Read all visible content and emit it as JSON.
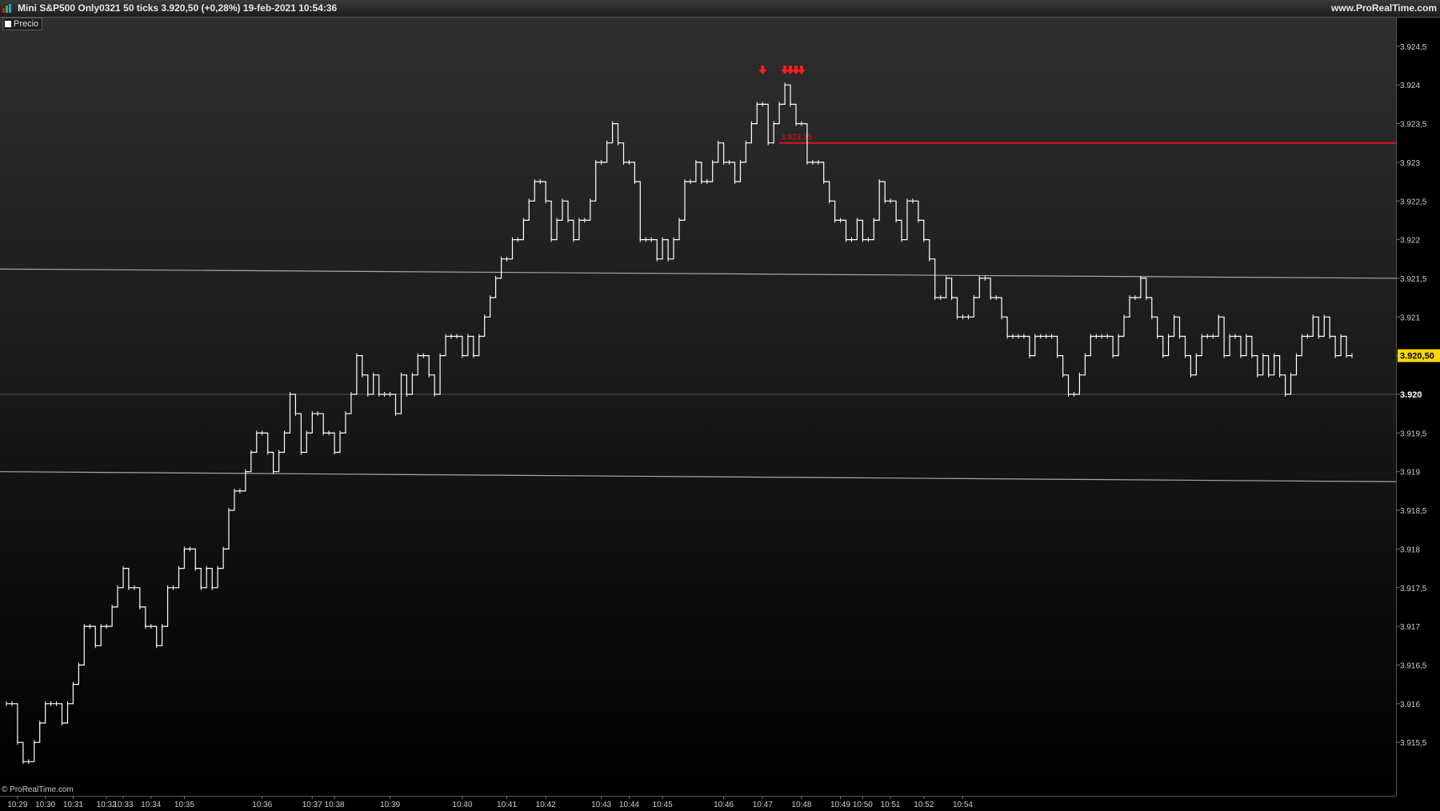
{
  "header": {
    "title": "Mini S&P500 Only0321 50 ticks 3.920,50 (+0,28%) 19-feb-2021 10:54:36",
    "website": "www.ProRealTime.com"
  },
  "legend": {
    "label": "Precio",
    "color": "#ffffff"
  },
  "footer": {
    "copyright": "© ProRealTime.com"
  },
  "colors": {
    "price_line": "#ffffff",
    "resistance": "#e0141e",
    "trendline": "#a8a8a8",
    "badge": "#ffd700"
  },
  "chart_data": {
    "type": "line",
    "style": "step",
    "instrument": "Mini S&P500",
    "interval": "50 ticks",
    "ylim": [
      3915.0,
      3924.75
    ],
    "ticks": [
      {
        "value": 3915.5,
        "label": "3.915,5"
      },
      {
        "value": 3916,
        "label": "3.916"
      },
      {
        "value": 3916.5,
        "label": "3.916,5"
      },
      {
        "value": 3917,
        "label": "3.917"
      },
      {
        "value": 3917.5,
        "label": "3.917,5"
      },
      {
        "value": 3918,
        "label": "3.918"
      },
      {
        "value": 3918.5,
        "label": "3.918,5"
      },
      {
        "value": 3919,
        "label": "3.919"
      },
      {
        "value": 3919.5,
        "label": "3.919,5"
      },
      {
        "value": 3920,
        "label": "3.920",
        "bold": true
      },
      {
        "value": 3920.5,
        "label": "3.920,50",
        "current": true
      },
      {
        "value": 3921,
        "label": "3.921"
      },
      {
        "value": 3921.5,
        "label": "3.921,5"
      },
      {
        "value": 3922,
        "label": "3.922"
      },
      {
        "value": 3922.5,
        "label": "3.922,5"
      },
      {
        "value": 3923,
        "label": "3.923"
      },
      {
        "value": 3923.5,
        "label": "3.923,5"
      },
      {
        "value": 3924,
        "label": "3.924"
      },
      {
        "value": 3924.5,
        "label": "3.924,5"
      }
    ],
    "x_labels": [
      "10:29",
      "10:30",
      "10:31",
      "10:32",
      "10:33",
      "10:34",
      "10:35",
      "10:36",
      "10:37",
      "10:38",
      "10:39",
      "10:40",
      "10:41",
      "10:42",
      "10:43",
      "10:44",
      "10:45",
      "10:46",
      "10:47",
      "10:48",
      "10:49",
      "10:50",
      "10:51",
      "10:52",
      "10:54"
    ],
    "x_label_bar_index": [
      2,
      7,
      12,
      18,
      21,
      26,
      32,
      46,
      55,
      59,
      69,
      82,
      90,
      97,
      107,
      112,
      118,
      129,
      136,
      143,
      150,
      154,
      159,
      165,
      172
    ],
    "series": [
      {
        "values": [
          3916,
          3916,
          3915.5,
          3915.25,
          3915.25,
          3915.5,
          3915.75,
          3916,
          3916,
          3916,
          3915.75,
          3916,
          3916.25,
          3916.5,
          3917,
          3917,
          3916.75,
          3917,
          3917,
          3917.25,
          3917.5,
          3917.75,
          3917.5,
          3917.5,
          3917.25,
          3917,
          3917,
          3916.75,
          3917,
          3917.5,
          3917.5,
          3917.75,
          3918,
          3918,
          3917.75,
          3917.5,
          3917.75,
          3917.5,
          3917.75,
          3918,
          3918.5,
          3918.75,
          3918.75,
          3919,
          3919.25,
          3919.5,
          3919.5,
          3919.25,
          3919,
          3919.25,
          3919.5,
          3920,
          3919.75,
          3919.25,
          3919.5,
          3919.75,
          3919.75,
          3919.5,
          3919.5,
          3919.25,
          3919.5,
          3919.75,
          3920,
          3920.5,
          3920.25,
          3920,
          3920.25,
          3920,
          3920,
          3920,
          3919.75,
          3920.25,
          3920,
          3920.25,
          3920.5,
          3920.5,
          3920.25,
          3920,
          3920.5,
          3920.75,
          3920.75,
          3920.75,
          3920.5,
          3920.75,
          3920.5,
          3920.75,
          3921,
          3921.25,
          3921.5,
          3921.75,
          3921.75,
          3922,
          3922,
          3922.25,
          3922.5,
          3922.75,
          3922.75,
          3922.5,
          3922,
          3922.25,
          3922.5,
          3922.25,
          3922,
          3922.25,
          3922.25,
          3922.5,
          3923,
          3923,
          3923.25,
          3923.5,
          3923.25,
          3923,
          3923,
          3922.75,
          3922,
          3922,
          3922,
          3921.75,
          3922,
          3921.75,
          3922,
          3922.25,
          3922.75,
          3922.75,
          3923,
          3922.75,
          3922.75,
          3923,
          3923.25,
          3923,
          3923,
          3922.75,
          3923,
          3923.25,
          3923.5,
          3923.75,
          3923.75,
          3923.25,
          3923.5,
          3923.75,
          3924,
          3923.75,
          3923.5,
          3923.5,
          3923,
          3923,
          3923,
          3922.75,
          3922.5,
          3922.25,
          3922.25,
          3922,
          3922,
          3922.25,
          3922,
          3922,
          3922.25,
          3922.75,
          3922.5,
          3922.5,
          3922.25,
          3922,
          3922.5,
          3922.5,
          3922.25,
          3922,
          3921.75,
          3921.25,
          3921.25,
          3921.5,
          3921.25,
          3921,
          3921,
          3921,
          3921.25,
          3921.5,
          3921.5,
          3921.25,
          3921.25,
          3921,
          3920.75,
          3920.75,
          3920.75,
          3920.75,
          3920.5,
          3920.75,
          3920.75,
          3920.75,
          3920.75,
          3920.5,
          3920.25,
          3920,
          3920,
          3920.25,
          3920.5,
          3920.75,
          3920.75,
          3920.75,
          3920.75,
          3920.5,
          3920.75,
          3921,
          3921.25,
          3921.25,
          3921.5,
          3921.25,
          3921,
          3920.75,
          3920.5,
          3920.75,
          3921,
          3920.75,
          3920.5,
          3920.25,
          3920.5,
          3920.75,
          3920.75,
          3920.75,
          3921,
          3920.5,
          3920.75,
          3920.75,
          3920.5,
          3920.75,
          3920.5,
          3920.25,
          3920.5,
          3920.25,
          3920.5,
          3920.25,
          3920,
          3920.25,
          3920.5,
          3920.75,
          3920.75,
          3921,
          3920.75,
          3921,
          3920.75,
          3920.5,
          3920.75,
          3920.5,
          3920.5
        ]
      }
    ],
    "horizontal_level": {
      "value": 3923.25,
      "label": "3.923,25",
      "start_bar": 139
    },
    "trendlines": [
      {
        "from": {
          "bar": 0,
          "value": 3921.62
        },
        "to": {
          "bar": 240,
          "value": 3921.5
        }
      },
      {
        "from": {
          "bar": 0,
          "value": 3919
        },
        "to": {
          "bar": 240,
          "value": 3918.87
        }
      }
    ],
    "signal_arrows_bars": [
      136,
      140,
      141,
      142,
      143
    ],
    "grid_levels": [
      3920
    ]
  }
}
